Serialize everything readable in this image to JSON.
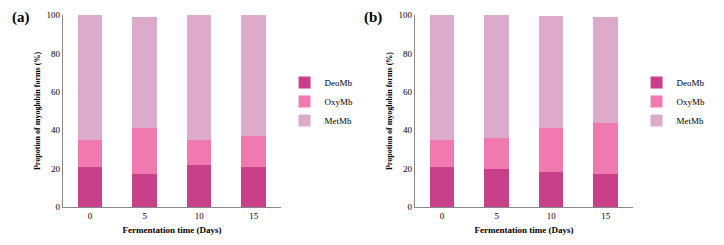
{
  "chart_data": [
    {
      "type": "bar",
      "title": "(a)",
      "stacked": true,
      "grid": false,
      "x_label": "Fermentation time (Days)",
      "y_label": "Propotion of myoglobin forms (%)",
      "categories": [
        "0",
        "5",
        "10",
        "15"
      ],
      "ylim": [
        0,
        100
      ],
      "yticks": [
        0,
        20,
        40,
        60,
        80,
        100
      ],
      "legend": "right",
      "series": [
        {
          "name": "DeoMb",
          "color": "#c8408a",
          "values": [
            21,
            17,
            22,
            21
          ]
        },
        {
          "name": "OxyMb",
          "color": "#f07ab0",
          "values": [
            14,
            24,
            13,
            16
          ]
        },
        {
          "name": "MetMb",
          "color": "#dcaacb",
          "values": [
            65,
            58,
            65,
            63
          ]
        }
      ]
    },
    {
      "type": "bar",
      "title": "(b)",
      "stacked": true,
      "grid": false,
      "x_label": "Fermentation time (Days)",
      "y_label": "Propotion of myoglobin forms (%)",
      "categories": [
        "0",
        "5",
        "10",
        "15"
      ],
      "ylim": [
        0,
        100
      ],
      "yticks": [
        0,
        20,
        40,
        60,
        80,
        100
      ],
      "legend": "right",
      "series": [
        {
          "name": "DeoMb",
          "color": "#c8408a",
          "values": [
            21,
            20,
            18,
            17
          ]
        },
        {
          "name": "OxyMb",
          "color": "#f07ab0",
          "values": [
            14,
            16,
            23,
            27
          ]
        },
        {
          "name": "MetMb",
          "color": "#dcaacb",
          "values": [
            65,
            64,
            58.5,
            55
          ]
        }
      ]
    }
  ]
}
